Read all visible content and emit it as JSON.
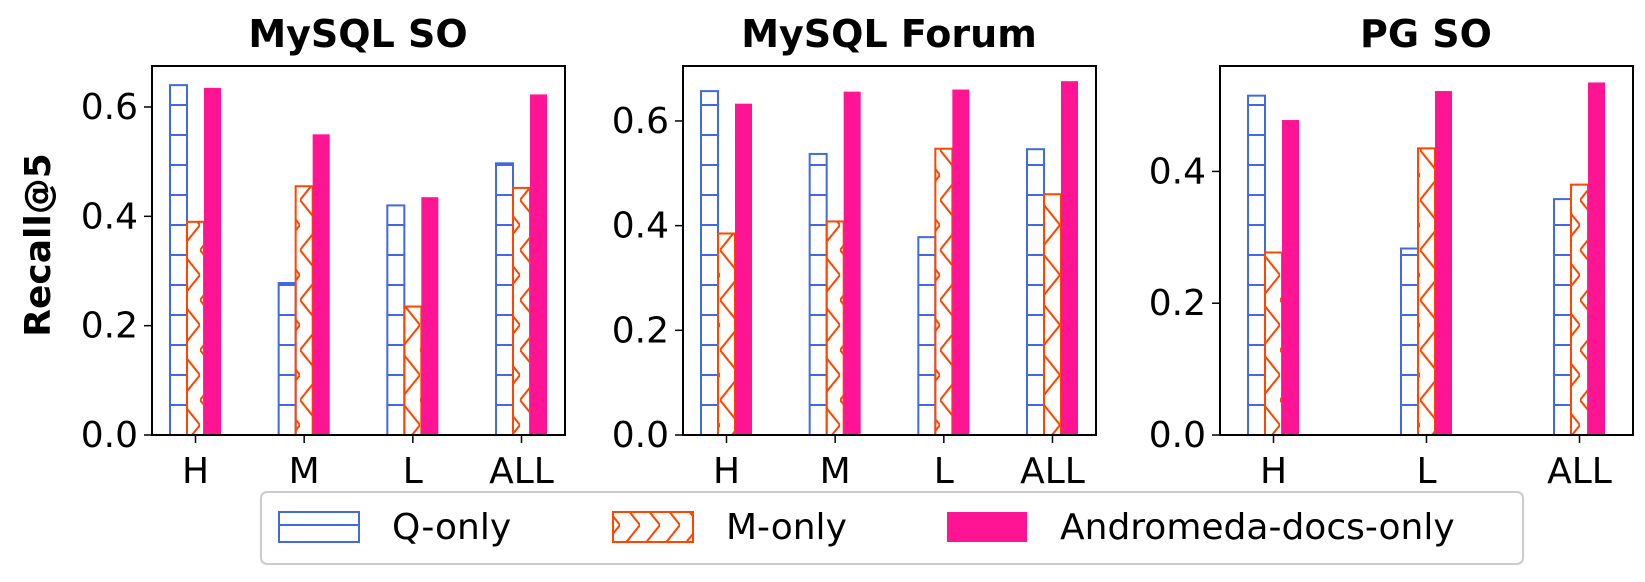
{
  "chart_data": [
    {
      "type": "bar",
      "title": "MySQL SO",
      "ylabel": "Recall@5",
      "categories": [
        "H",
        "M",
        "L",
        "ALL"
      ],
      "ylim": [
        0,
        0.675
      ],
      "yticks": [
        "0.0",
        "0.2",
        "0.4",
        "0.6"
      ],
      "series": [
        {
          "name": "Q-only",
          "values": [
            0.64,
            0.278,
            0.42,
            0.497
          ]
        },
        {
          "name": "M-only",
          "values": [
            0.39,
            0.455,
            0.235,
            0.452
          ]
        },
        {
          "name": "Andromeda-docs-only",
          "values": [
            0.635,
            0.55,
            0.435,
            0.623
          ]
        }
      ]
    },
    {
      "type": "bar",
      "title": "MySQL Forum",
      "ylabel": "",
      "categories": [
        "H",
        "M",
        "L",
        "ALL"
      ],
      "ylim": [
        0,
        0.705
      ],
      "yticks": [
        "0.0",
        "0.2",
        "0.4",
        "0.6"
      ],
      "series": [
        {
          "name": "Q-only",
          "values": [
            0.657,
            0.537,
            0.378,
            0.546
          ]
        },
        {
          "name": "M-only",
          "values": [
            0.385,
            0.408,
            0.547,
            0.46
          ]
        },
        {
          "name": "Andromeda-docs-only",
          "values": [
            0.633,
            0.656,
            0.66,
            0.676
          ]
        }
      ]
    },
    {
      "type": "bar",
      "title": "PG SO",
      "ylabel": "",
      "categories": [
        "H",
        "L",
        "ALL"
      ],
      "ylim": [
        0,
        0.56
      ],
      "yticks": [
        "0.0",
        "0.2",
        "0.4"
      ],
      "series": [
        {
          "name": "Q-only",
          "values": [
            0.515,
            0.283,
            0.358
          ]
        },
        {
          "name": "M-only",
          "values": [
            0.277,
            0.435,
            0.38
          ]
        },
        {
          "name": "Andromeda-docs-only",
          "values": [
            0.478,
            0.522,
            0.535
          ]
        }
      ]
    }
  ],
  "legend": {
    "placement": "bottom-center",
    "entries": [
      {
        "label": "Q-only",
        "color": "#4169e1",
        "pattern": "horizontal-hatch"
      },
      {
        "label": "M-only",
        "color": "#ff4500",
        "pattern": "cross-hatch"
      },
      {
        "label": "Andromeda-docs-only",
        "color": "#ff1493",
        "pattern": "solid"
      }
    ]
  },
  "colors": {
    "q_only": "#4169e1",
    "m_only": "#ff4500",
    "docs_only": "#ff1493"
  }
}
